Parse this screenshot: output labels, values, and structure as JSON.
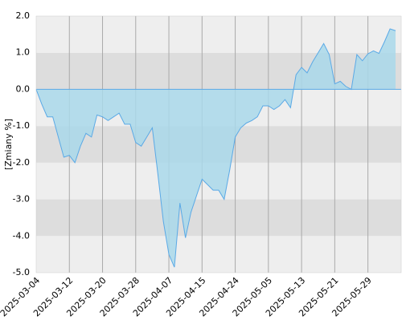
{
  "chart_data": {
    "type": "area",
    "y_label": "[Zmiany %]",
    "categories": [
      "2025-03-04",
      null,
      null,
      null,
      null,
      null,
      "2025-03-12",
      null,
      null,
      null,
      null,
      null,
      "2025-03-20",
      null,
      null,
      null,
      null,
      null,
      "2025-03-28",
      null,
      null,
      null,
      null,
      null,
      "2025-04-07",
      null,
      null,
      null,
      null,
      null,
      "2025-04-15",
      null,
      null,
      null,
      null,
      null,
      "2025-04-24",
      null,
      null,
      null,
      null,
      null,
      "2025-05-05",
      null,
      null,
      null,
      null,
      null,
      "2025-05-13",
      null,
      null,
      null,
      null,
      null,
      "2025-05-21",
      null,
      null,
      null,
      null,
      null,
      "2025-05-29",
      null,
      null,
      null,
      null,
      null
    ],
    "values": [
      0.0,
      -0.4,
      -0.75,
      -0.75,
      -1.3,
      -1.85,
      -1.8,
      -2.0,
      -1.55,
      -1.2,
      -1.3,
      -0.7,
      -0.75,
      -0.85,
      -0.75,
      -0.65,
      -0.95,
      -0.95,
      -1.45,
      -1.55,
      -1.3,
      -1.05,
      -2.3,
      -3.6,
      -4.5,
      -4.85,
      -3.1,
      -4.05,
      -3.35,
      -2.9,
      -2.45,
      -2.6,
      -2.75,
      -2.75,
      -3.0,
      -2.2,
      -1.3,
      -1.05,
      -0.92,
      -0.85,
      -0.75,
      -0.45,
      -0.45,
      -0.55,
      -0.45,
      -0.28,
      -0.5,
      0.4,
      0.6,
      0.45,
      0.75,
      1.0,
      1.25,
      0.95,
      0.15,
      0.22,
      0.08,
      0.0,
      0.95,
      0.78,
      0.97,
      1.05,
      0.98,
      1.3,
      1.65,
      1.6
    ],
    "color": "#5aa9e6",
    "fill_color": "#a9d8ea",
    "ylim": [
      -5,
      2
    ],
    "yticks": [
      {
        "value": -5,
        "label": "-5.0"
      },
      {
        "value": -4,
        "label": "-4.0"
      },
      {
        "value": -3,
        "label": "-3.0"
      },
      {
        "value": -2,
        "label": "-2.0"
      },
      {
        "value": -1,
        "label": "-1.0"
      },
      {
        "value": 0,
        "label": "0.0"
      },
      {
        "value": 1,
        "label": "1.0"
      },
      {
        "value": 2,
        "label": "2.0"
      }
    ],
    "grid": true
  }
}
